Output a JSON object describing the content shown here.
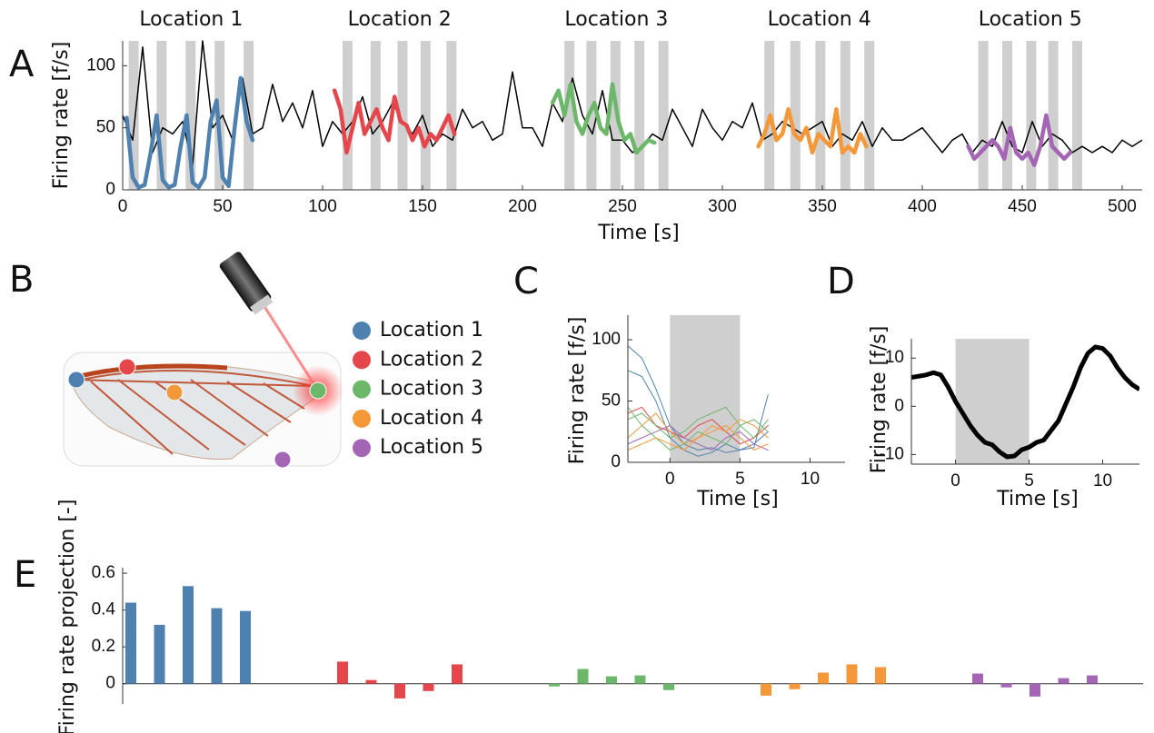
{
  "chart_data": [
    {
      "label": "A",
      "type": "line",
      "xlabel": "Time [s]",
      "ylabel": "Firing rate [f/s]",
      "color": "#000000",
      "xlim": [
        0,
        510
      ],
      "xticks": [
        0,
        50,
        100,
        150,
        200,
        250,
        300,
        350,
        400,
        450,
        500
      ],
      "ylim": [
        0,
        120
      ],
      "yticks": [
        0,
        50,
        100
      ],
      "stimulus_duration": 5,
      "x": [
        0,
        5,
        10,
        15,
        20,
        25,
        30,
        35,
        40,
        45,
        50,
        55,
        60,
        65,
        70,
        75,
        80,
        85,
        90,
        95,
        100,
        105,
        110,
        115,
        120,
        125,
        130,
        135,
        140,
        145,
        150,
        155,
        160,
        165,
        170,
        175,
        180,
        185,
        190,
        195,
        200,
        205,
        210,
        215,
        220,
        225,
        230,
        235,
        240,
        245,
        250,
        255,
        260,
        265,
        270,
        275,
        280,
        285,
        290,
        295,
        300,
        305,
        310,
        315,
        320,
        325,
        330,
        335,
        340,
        345,
        350,
        355,
        360,
        365,
        370,
        375,
        380,
        385,
        390,
        395,
        400,
        405,
        410,
        415,
        420,
        425,
        430,
        435,
        440,
        445,
        450,
        455,
        460,
        465,
        470,
        475,
        480,
        485,
        490,
        495,
        500,
        505,
        510
      ],
      "values": [
        60,
        40,
        115,
        30,
        50,
        45,
        55,
        20,
        120,
        50,
        60,
        40,
        90,
        45,
        50,
        85,
        55,
        70,
        50,
        80,
        35,
        55,
        45,
        55,
        75,
        45,
        55,
        70,
        55,
        45,
        60,
        35,
        45,
        40,
        65,
        50,
        55,
        40,
        45,
        95,
        50,
        50,
        35,
        70,
        55,
        90,
        60,
        45,
        80,
        40,
        40,
        30,
        35,
        45,
        40,
        65,
        50,
        35,
        65,
        50,
        40,
        55,
        50,
        70,
        40,
        45,
        55,
        50,
        45,
        50,
        55,
        35,
        45,
        40,
        55,
        35,
        50,
        40,
        40,
        45,
        50,
        40,
        30,
        40,
        45,
        30,
        40,
        35,
        55,
        35,
        30,
        55,
        35,
        45,
        40,
        30,
        35,
        30,
        35,
        30,
        40,
        35,
        40
      ],
      "series": [
        {
          "name": "Location 1",
          "color": "#4f81b0",
          "stimuli": [
            3,
            17,
            31.5,
            46,
            60.5
          ],
          "x": [
            2,
            5,
            8,
            11,
            14,
            17,
            20,
            23,
            26,
            29,
            32,
            35,
            38,
            41,
            44,
            47,
            50,
            53,
            56,
            59,
            62,
            65
          ],
          "values": [
            58,
            10,
            2,
            4,
            30,
            60,
            8,
            2,
            4,
            35,
            60,
            6,
            2,
            10,
            55,
            72,
            10,
            3,
            50,
            90,
            55,
            40
          ]
        },
        {
          "name": "Location 2",
          "color": "#e5464b",
          "stimuli": [
            110,
            124,
            137.5,
            149,
            162
          ],
          "x": [
            106,
            109,
            112,
            115,
            118,
            121,
            124,
            127,
            130,
            133,
            136,
            139,
            142,
            145,
            148,
            151,
            154,
            157,
            160,
            163,
            166
          ],
          "values": [
            80,
            65,
            30,
            50,
            70,
            45,
            55,
            65,
            50,
            40,
            75,
            55,
            52,
            40,
            50,
            35,
            45,
            40,
            50,
            60,
            45
          ]
        },
        {
          "name": "Location 3",
          "color": "#6cb76a",
          "stimuli": [
            221,
            232,
            244,
            256,
            268
          ],
          "x": [
            215,
            218,
            221,
            224,
            227,
            230,
            233,
            236,
            239,
            242,
            245,
            248,
            251,
            254,
            257,
            260,
            263,
            266
          ],
          "values": [
            70,
            80,
            60,
            85,
            55,
            45,
            60,
            70,
            50,
            45,
            85,
            55,
            40,
            45,
            30,
            35,
            40,
            38
          ]
        },
        {
          "name": "Location 4",
          "color": "#f5983a",
          "stimuli": [
            321,
            334,
            346.5,
            359,
            371
          ],
          "x": [
            318,
            321,
            324,
            327,
            330,
            333,
            336,
            339,
            342,
            345,
            348,
            351,
            354,
            357,
            360,
            363,
            366,
            369,
            372
          ],
          "values": [
            35,
            45,
            60,
            40,
            45,
            65,
            45,
            40,
            50,
            30,
            45,
            40,
            35,
            65,
            30,
            35,
            30,
            45,
            35
          ]
        },
        {
          "name": "Location 5",
          "color": "#a466b4",
          "stimuli": [
            428,
            440,
            452,
            463,
            475
          ],
          "x": [
            423,
            426,
            429,
            432,
            435,
            438,
            441,
            444,
            447,
            450,
            453,
            456,
            459,
            462,
            465,
            468,
            471,
            474
          ],
          "values": [
            35,
            25,
            30,
            35,
            40,
            35,
            25,
            50,
            30,
            25,
            30,
            20,
            35,
            60,
            35,
            30,
            25,
            30
          ]
        }
      ]
    },
    {
      "label": "C",
      "type": "line",
      "xlabel": "Time [s]",
      "ylabel": "Firing rate [f/s]",
      "xlim": [
        -3,
        12.5
      ],
      "xticks": [
        0,
        5,
        10
      ],
      "ylim": [
        0,
        120
      ],
      "yticks": [
        0,
        50,
        100
      ],
      "stimulus": [
        0,
        5
      ],
      "x": [
        -3,
        -2,
        -1,
        0,
        1,
        2,
        3,
        4,
        5,
        6,
        7
      ],
      "series": [
        {
          "color": "#4f81b0",
          "values": [
            95,
            85,
            60,
            30,
            15,
            10,
            12,
            8,
            10,
            15,
            25
          ]
        },
        {
          "color": "#4f81b0",
          "values": [
            75,
            70,
            50,
            20,
            10,
            5,
            8,
            15,
            10,
            12,
            55
          ]
        },
        {
          "color": "#e5464b",
          "values": [
            40,
            45,
            30,
            25,
            20,
            30,
            35,
            25,
            15,
            20,
            30
          ]
        },
        {
          "color": "#6cb76a",
          "values": [
            35,
            40,
            30,
            20,
            25,
            35,
            40,
            45,
            30,
            20,
            35
          ]
        },
        {
          "color": "#f5983a",
          "values": [
            20,
            30,
            40,
            25,
            15,
            20,
            30,
            25,
            35,
            30,
            20
          ]
        },
        {
          "color": "#a466b4",
          "values": [
            15,
            20,
            25,
            30,
            20,
            15,
            10,
            20,
            25,
            15,
            10
          ]
        },
        {
          "color": "#6cb76a",
          "values": [
            45,
            30,
            20,
            10,
            15,
            25,
            20,
            15,
            30,
            35,
            25
          ]
        },
        {
          "color": "#f5983a",
          "values": [
            10,
            15,
            20,
            15,
            10,
            20,
            25,
            30,
            20,
            10,
            15
          ]
        }
      ]
    },
    {
      "label": "D",
      "type": "line",
      "xlabel": "Time [s]",
      "ylabel": "Firing rate [f/s]",
      "color": "#000000",
      "xlim": [
        -3,
        12.5
      ],
      "xticks": [
        0,
        5,
        10
      ],
      "ylim": [
        -12,
        14
      ],
      "yticks": [
        -10,
        0,
        10
      ],
      "stimulus": [
        0,
        5
      ],
      "x": [
        -3,
        -2,
        -1.5,
        -1,
        -0.5,
        0,
        1,
        1.5,
        2,
        2.5,
        3,
        3.5,
        4,
        4.5,
        5,
        5.5,
        6,
        7,
        8,
        8.5,
        9,
        9.5,
        10,
        10.5,
        11,
        11.5,
        12,
        12.5
      ],
      "values": [
        6,
        6.5,
        7,
        6.5,
        4,
        1,
        -4,
        -6,
        -7.5,
        -8,
        -9.5,
        -10.5,
        -10.3,
        -9,
        -8.5,
        -7.5,
        -7,
        -3,
        4,
        8,
        11,
        12.3,
        12,
        10.5,
        8,
        6,
        4.5,
        3.5
      ]
    },
    {
      "label": "E",
      "type": "bar",
      "ylabel": "Firing rate projection [-]",
      "ylim": [
        -0.11,
        0.63
      ],
      "yticks": [
        0,
        0.2,
        0.4,
        0.6
      ],
      "series": [
        {
          "color": "#4f81b0",
          "values": [
            0.44,
            0.32,
            0.53,
            0.41,
            0.395
          ]
        },
        {
          "color": "#e5464b",
          "values": [
            0.12,
            0.02,
            -0.08,
            -0.04,
            0.105
          ]
        },
        {
          "color": "#6cb76a",
          "values": [
            -0.015,
            0.08,
            0.04,
            0.045,
            -0.035
          ]
        },
        {
          "color": "#f5983a",
          "values": [
            -0.065,
            -0.03,
            0.06,
            0.105,
            0.09
          ]
        },
        {
          "color": "#a466b4",
          "values": [
            0.055,
            -0.02,
            -0.07,
            0.03,
            0.045
          ]
        }
      ]
    }
  ],
  "diagram": {
    "label": "B"
  }
}
